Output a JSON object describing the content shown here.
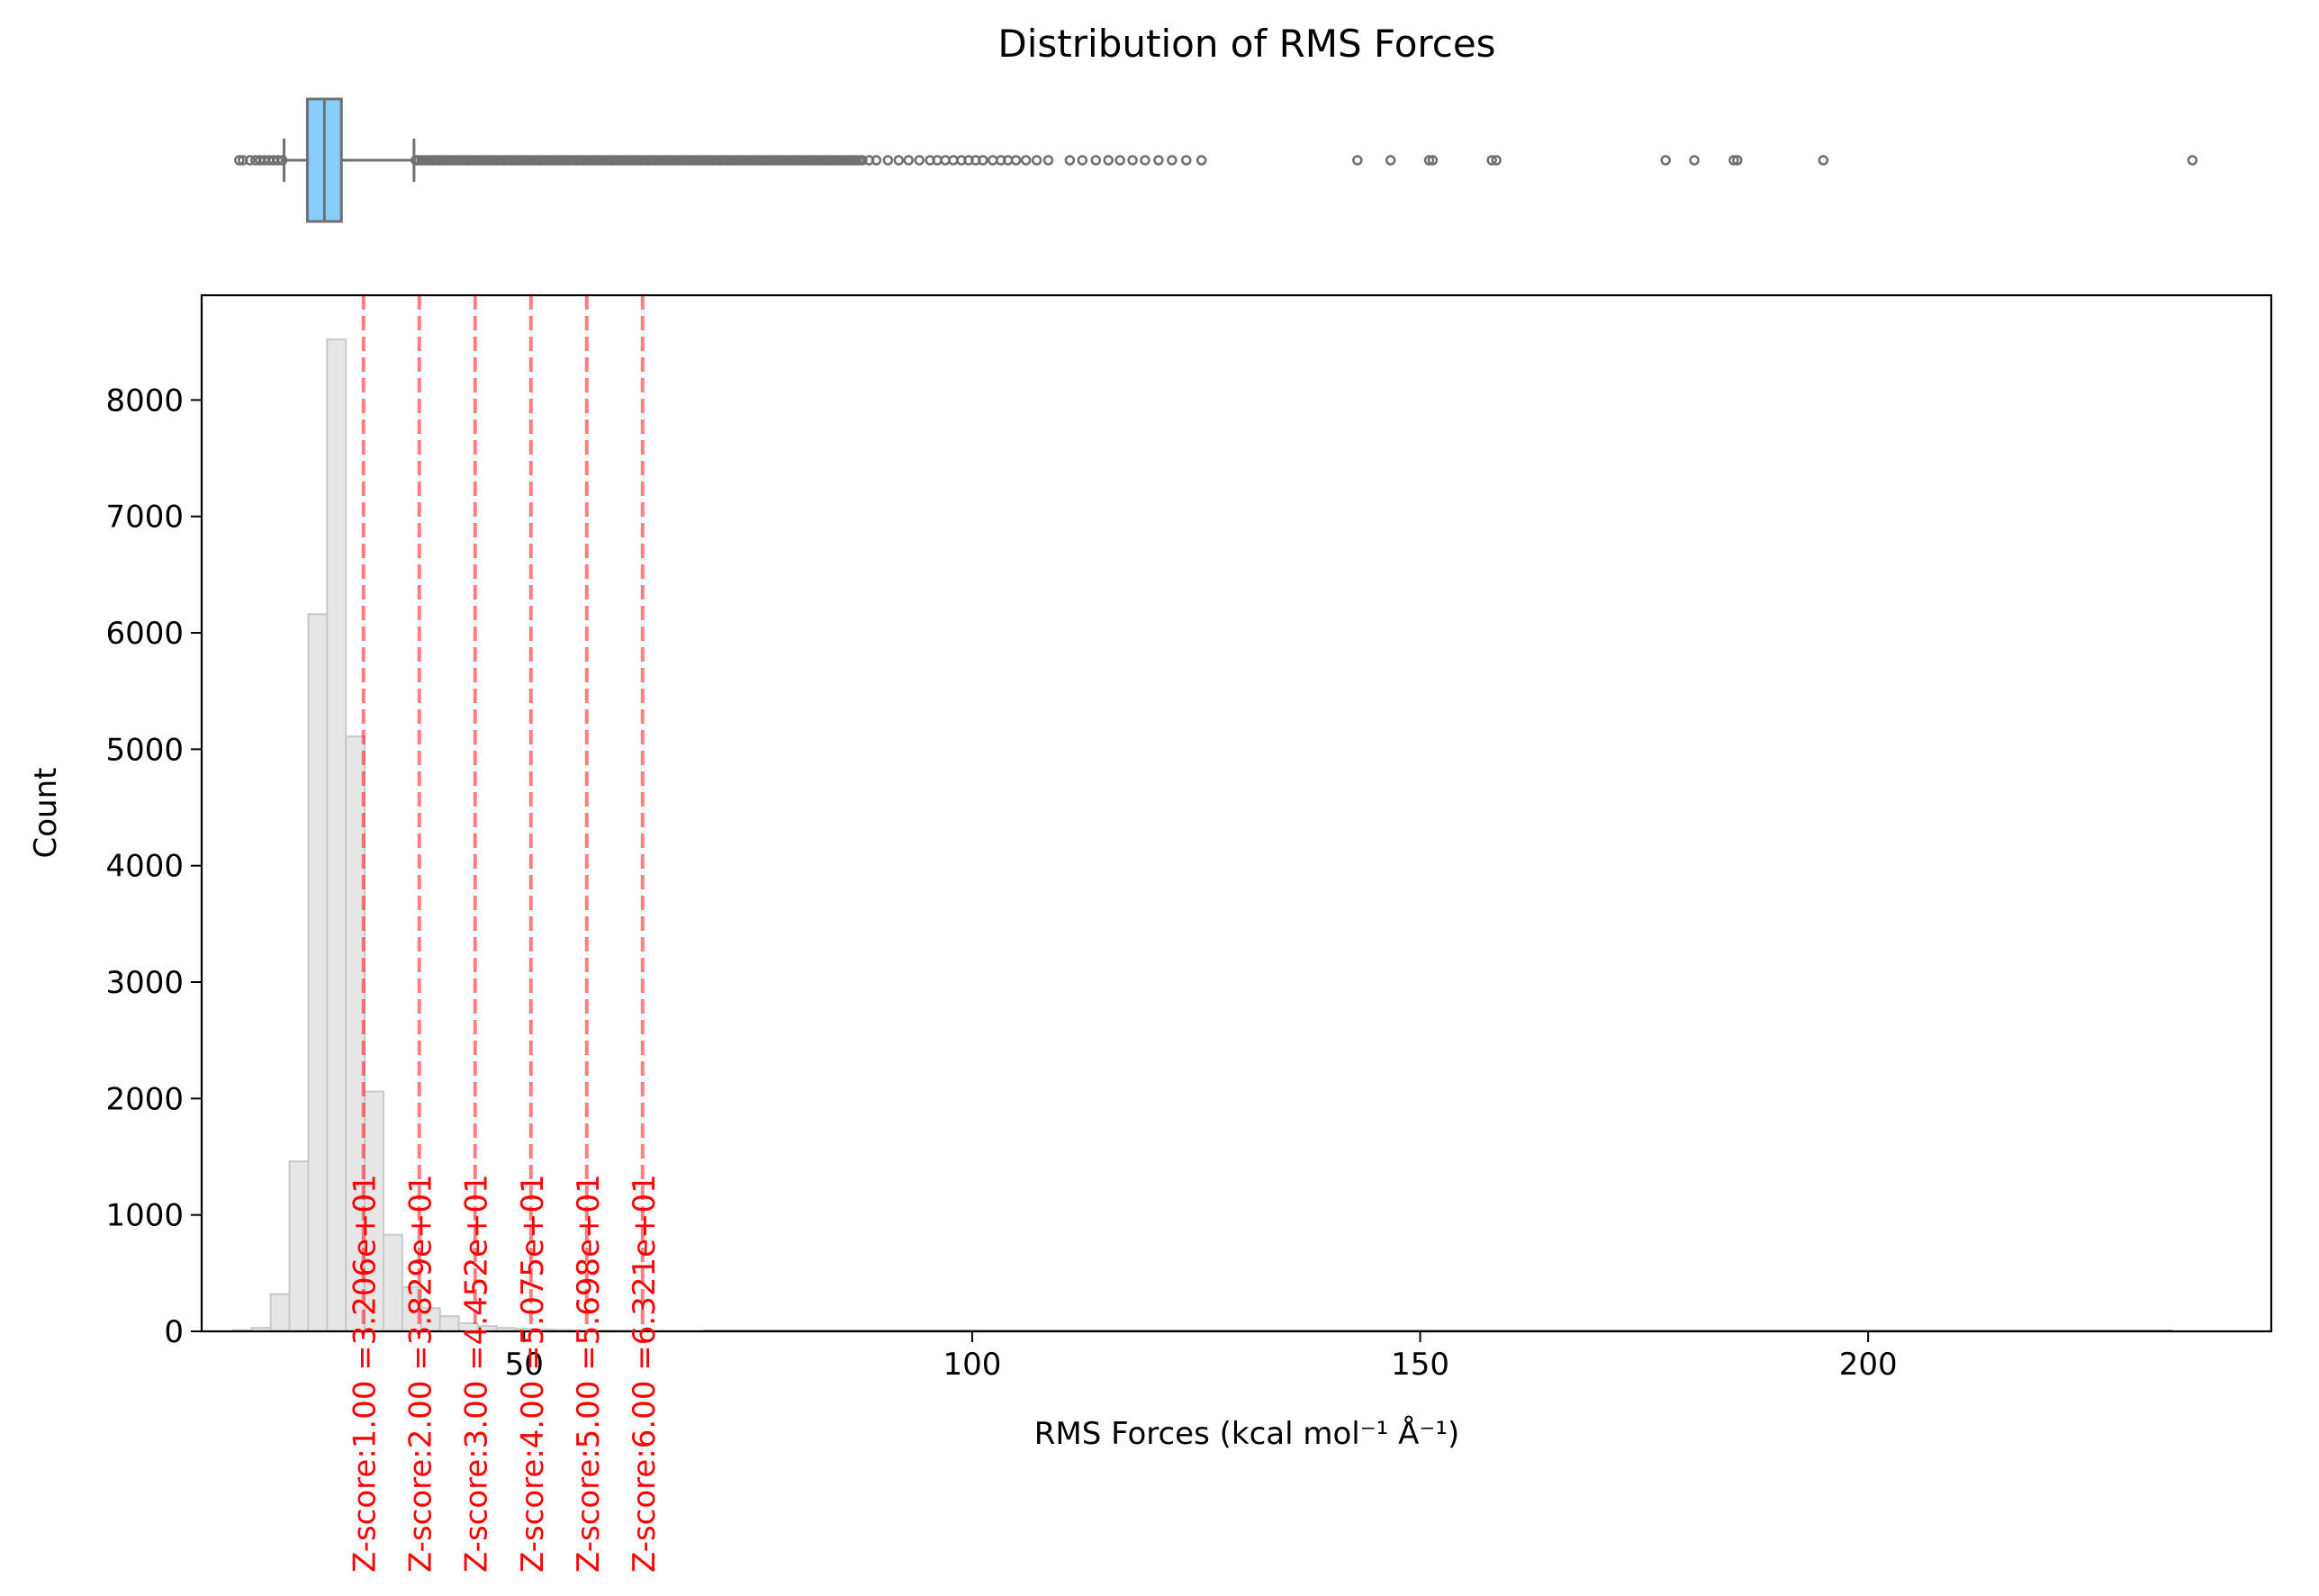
{
  "chart_data": {
    "type": "histogram",
    "title": "Distribution of RMS Forces",
    "xlabel": "RMS Forces (kcal mol⁻¹ Å⁻¹)",
    "ylabel": "Count",
    "xlim": [
      14,
      245
    ],
    "ylim": [
      0,
      8900
    ],
    "x_ticks": [
      {
        "value": 50,
        "label": "50"
      },
      {
        "value": 100,
        "label": "100"
      },
      {
        "value": 150,
        "label": "150"
      },
      {
        "value": 200,
        "label": "200"
      }
    ],
    "y_ticks": [
      {
        "value": 0,
        "label": "0"
      },
      {
        "value": 1000,
        "label": "1000"
      },
      {
        "value": 2000,
        "label": "2000"
      },
      {
        "value": 3000,
        "label": "3000"
      },
      {
        "value": 4000,
        "label": "4000"
      },
      {
        "value": 5000,
        "label": "5000"
      },
      {
        "value": 6000,
        "label": "6000"
      },
      {
        "value": 7000,
        "label": "7000"
      },
      {
        "value": 8000,
        "label": "8000"
      }
    ],
    "histogram": {
      "fill_color": "#e6e6e6",
      "edge_color": "#c8c8c8",
      "bin_edges": [
        17.5,
        19.6,
        21.7,
        23.8,
        25.9,
        28.0,
        30.1,
        32.2,
        34.3,
        36.4,
        38.5,
        40.6,
        42.7,
        44.8,
        46.9,
        49.0,
        51.1,
        53.2,
        55.3,
        57.4,
        59.5,
        61.6,
        63.7,
        65.8,
        67.9,
        70.0
      ],
      "counts": [
        10,
        30,
        320,
        1460,
        6160,
        8520,
        5110,
        2060,
        830,
        380,
        200,
        130,
        70,
        45,
        30,
        22,
        16,
        12,
        9,
        7,
        5,
        4,
        3,
        2,
        2
      ],
      "tail_to": 234
    },
    "zscore_lines": [
      {
        "x": 32.06,
        "label": "Z-score:1.00 =3.206e+01"
      },
      {
        "x": 38.29,
        "label": "Z-score:2.00 =3.829e+01"
      },
      {
        "x": 44.52,
        "label": "Z-score:3.00 =4.452e+01"
      },
      {
        "x": 50.75,
        "label": "Z-score:4.00 =5.075e+01"
      },
      {
        "x": 56.98,
        "label": "Z-score:5.00 =5.698e+01"
      },
      {
        "x": 63.21,
        "label": "Z-score:6.00 =6.321e+01"
      }
    ],
    "zscore_color": "#ff0000",
    "boxplot": {
      "whisker_low": 23.2,
      "q1": 25.8,
      "median": 27.7,
      "q3": 29.6,
      "whisker_high": 37.7,
      "box_color": "#87cefa",
      "line_color": "#707070",
      "outliers_low": [
        18.2,
        18.6,
        19.4,
        20.0,
        20.5,
        21.0,
        21.5,
        22.0,
        22.5,
        23.0
      ],
      "outliers_high_dense_from": 37.9,
      "outliers_high_dense_to": 88.0,
      "outliers_high": [
        88.5,
        89.3,
        90.6,
        91.8,
        92.9,
        94.1,
        95.3,
        96.1,
        97.0,
        97.9,
        98.8,
        99.6,
        100.4,
        101.2,
        102.3,
        103.2,
        104.0,
        104.9,
        106.0,
        107.2,
        108.5,
        110.9,
        112.3,
        113.8,
        115.2,
        116.5,
        117.9,
        119.3,
        120.8,
        122.3,
        123.9,
        125.6,
        143.0,
        146.7,
        151.0,
        151.4,
        158.0,
        158.5,
        177.4,
        180.6,
        185.0,
        185.4,
        195.0,
        236.2
      ]
    }
  }
}
